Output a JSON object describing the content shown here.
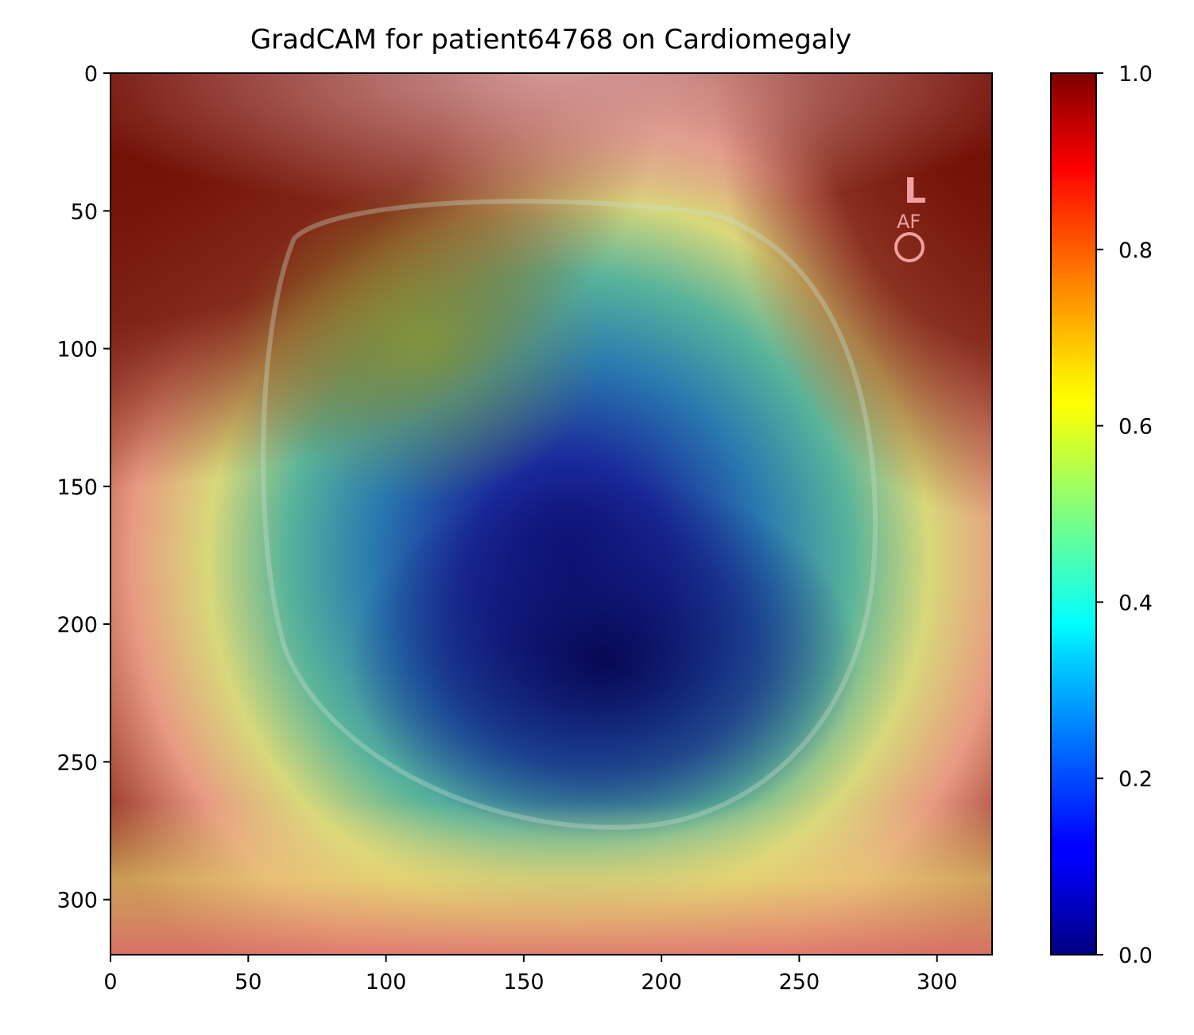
{
  "chart_data": {
    "type": "heatmap",
    "title": "GradCAM for patient64768 on Cardiomegaly",
    "xlabel": "",
    "ylabel": "",
    "xlim": [
      0,
      320
    ],
    "ylim": [
      320,
      0
    ],
    "x_ticks": [
      0,
      50,
      100,
      150,
      200,
      250,
      300
    ],
    "y_ticks": [
      0,
      50,
      100,
      150,
      200,
      250,
      300
    ],
    "colormap": "jet",
    "colorbar": {
      "range": [
        0.0,
        1.0
      ],
      "ticks": [
        "0.0",
        "0.2",
        "0.4",
        "0.6",
        "0.8",
        "1.0"
      ]
    },
    "background_image": "lateral chest x-ray",
    "overlay_labels": [
      "L",
      "AF"
    ],
    "heat_regions": [
      {
        "region": "top-left corner",
        "level": 1.0
      },
      {
        "region": "top-right corner",
        "level": 1.0
      },
      {
        "region": "top center",
        "level": 0.85
      },
      {
        "region": "bottom edge",
        "level": 0.85
      },
      {
        "region": "upper-left lung",
        "level": 0.6
      },
      {
        "region": "center",
        "level": 0.3
      },
      {
        "region": "lower center (heart)",
        "level": 0.0
      }
    ],
    "colors": {
      "low": "#00007f",
      "mid": "#7fff7f",
      "high": "#7f0000"
    }
  }
}
